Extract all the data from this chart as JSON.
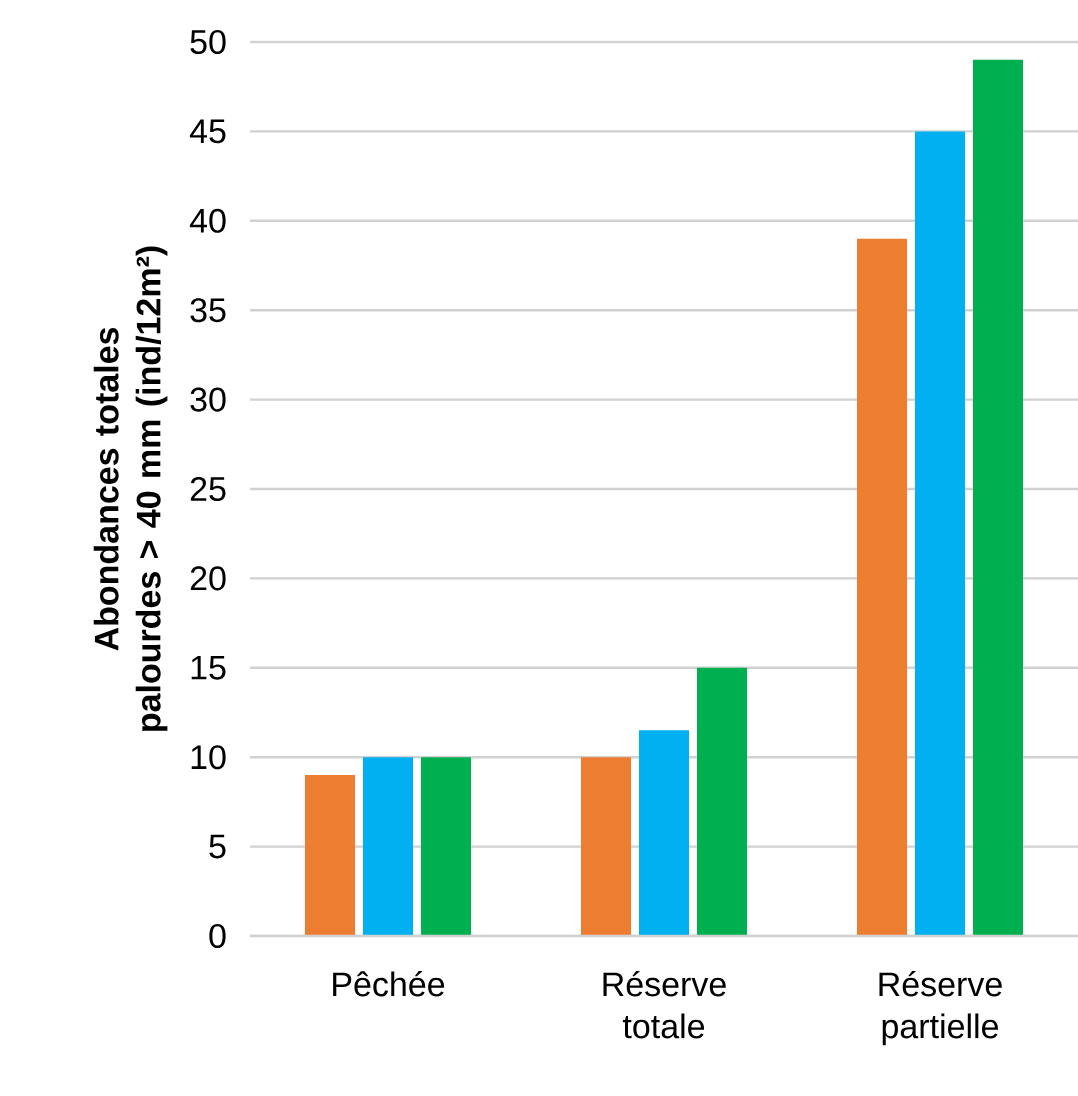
{
  "chart_data": {
    "type": "bar",
    "ylabel": "Abondances totales palourdes > 40 mm (ind/12m²)",
    "categories": [
      "Pêchée",
      "Réserve totale",
      "Réserve partielle"
    ],
    "series": [
      {
        "color": "#ed7d31",
        "values": [
          9,
          10,
          39
        ]
      },
      {
        "color": "#00b0f0",
        "values": [
          10,
          11.5,
          45
        ]
      },
      {
        "color": "#00b050",
        "values": [
          10,
          15,
          49
        ]
      }
    ],
    "ylim": [
      0,
      50
    ],
    "yticks": [
      0,
      5,
      10,
      15,
      20,
      25,
      30,
      35,
      40,
      45,
      50
    ],
    "grid": "y"
  }
}
